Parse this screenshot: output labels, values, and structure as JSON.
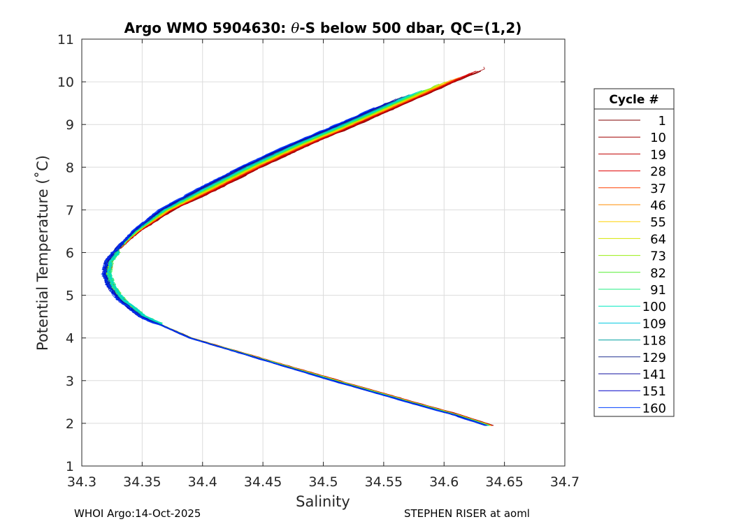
{
  "chart_data": {
    "type": "line",
    "title_prefix": "Argo WMO 5904630: ",
    "title_symbol": "θ",
    "title_suffix": "-S below 500 dbar,  QC=(1,2)",
    "xlabel": "Salinity",
    "ylabel": "Potential Temperature (˚C)",
    "xlim": [
      34.3,
      34.7
    ],
    "ylim": [
      1,
      11
    ],
    "xticks": [
      "34.3",
      "34.35",
      "34.4",
      "34.45",
      "34.5",
      "34.55",
      "34.6",
      "34.65",
      "34.7"
    ],
    "yticks": [
      "1",
      "2",
      "3",
      "4",
      "5",
      "6",
      "7",
      "8",
      "9",
      "10",
      "11"
    ],
    "grid": true,
    "legend": {
      "title": "Cycle #",
      "placement": "outside-right",
      "entries": [
        {
          "label": "1",
          "color": "#800000"
        },
        {
          "label": "10",
          "color": "#a00000"
        },
        {
          "label": "19",
          "color": "#c00000"
        },
        {
          "label": "28",
          "color": "#e00000"
        },
        {
          "label": "37",
          "color": "#ff4000"
        },
        {
          "label": "46",
          "color": "#ff8c00"
        },
        {
          "label": "55",
          "color": "#ffd000"
        },
        {
          "label": "64",
          "color": "#d4e600"
        },
        {
          "label": "73",
          "color": "#9aee10"
        },
        {
          "label": "82",
          "color": "#55ee30"
        },
        {
          "label": "91",
          "color": "#20ee80"
        },
        {
          "label": "100",
          "color": "#00e8c0"
        },
        {
          "label": "109",
          "color": "#00c8e0"
        },
        {
          "label": "118",
          "color": "#00a0a0"
        },
        {
          "label": "129",
          "color": "#203090"
        },
        {
          "label": "141",
          "color": "#1010a0"
        },
        {
          "label": "151",
          "color": "#0000c8"
        },
        {
          "label": "160",
          "color": "#0040ff"
        }
      ]
    },
    "profile_mean": {
      "theta": [
        1.95,
        2.2,
        2.5,
        3.0,
        3.5,
        4.0,
        4.5,
        4.9,
        5.2,
        5.5,
        5.8,
        6.1,
        6.5,
        7.0,
        7.5,
        8.0,
        8.5,
        9.0,
        9.5,
        10.0,
        10.3
      ],
      "salinity": [
        34.637,
        34.61,
        34.572,
        34.51,
        34.45,
        34.39,
        34.35,
        34.332,
        34.324,
        34.32,
        34.322,
        34.33,
        34.345,
        34.37,
        34.405,
        34.44,
        34.478,
        34.52,
        34.56,
        34.6,
        34.625
      ]
    }
  },
  "footer": {
    "left": "WHOI Argo:14-Oct-2025",
    "right": "STEPHEN RISER at aoml"
  }
}
